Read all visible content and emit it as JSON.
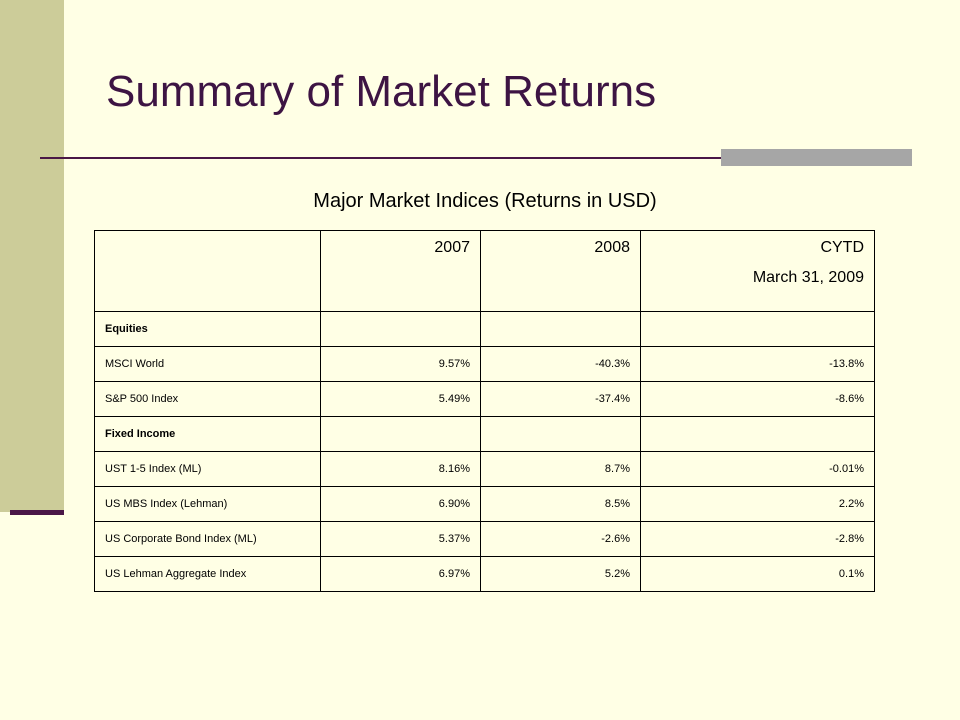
{
  "slide": {
    "title": "Summary of Market Returns",
    "subtitle": "Major Market Indices (Returns in USD)"
  },
  "table": {
    "header": {
      "col1": "2007",
      "col2": "2008",
      "col3_line1": "CYTD",
      "col3_line2": "March 31, 2009"
    },
    "rows": [
      {
        "label": "Equities",
        "v2007": "",
        "v2008": "",
        "cytd": ""
      },
      {
        "label": "MSCI World",
        "v2007": "9.57%",
        "v2008": "-40.3%",
        "cytd": "-13.8%"
      },
      {
        "label": "S&P 500 Index",
        "v2007": "5.49%",
        "v2008": "-37.4%",
        "cytd": "-8.6%"
      },
      {
        "label": "Fixed Income",
        "v2007": "",
        "v2008": "",
        "cytd": ""
      },
      {
        "label": "UST 1-5 Index (ML)",
        "v2007": "8.16%",
        "v2008": "8.7%",
        "cytd": "-0.01%"
      },
      {
        "label": "US MBS Index (Lehman)",
        "v2007": "6.90%",
        "v2008": "8.5%",
        "cytd": "2.2%"
      },
      {
        "label": "US Corporate Bond Index (ML)",
        "v2007": "5.37%",
        "v2008": "-2.6%",
        "cytd": "-2.8%"
      },
      {
        "label": "US Lehman Aggregate Index",
        "v2007": "6.97%",
        "v2008": "5.2%",
        "cytd": "0.1%"
      }
    ]
  },
  "colors": {
    "background": "#FFFFE5",
    "sidebar": "#CCCC99",
    "accent": "#4A1746",
    "title": "#3D1443",
    "rule_accent": "#A6A6A6"
  }
}
